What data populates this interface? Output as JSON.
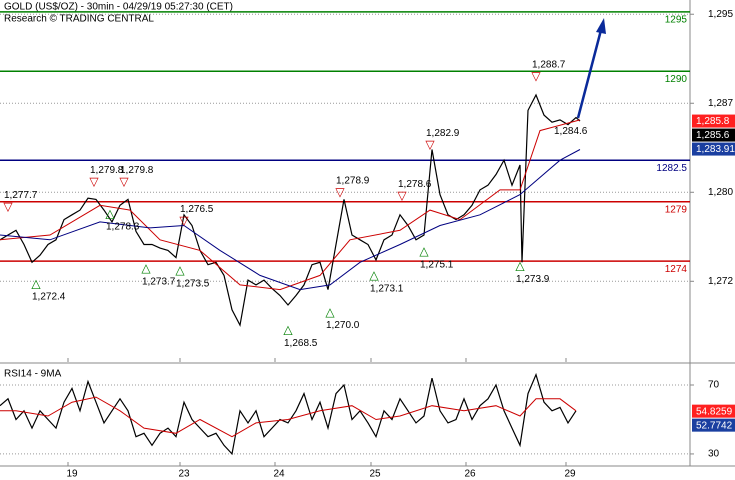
{
  "header": {
    "title": "GOLD (US$/OZ) - 30min - 04/29/19 05:27:30 (CET)",
    "subtitle": "Research © TRADING CENTRAL"
  },
  "chart_data": [
    {
      "type": "line",
      "xlim": [
        0,
        345
      ],
      "ylim": [
        1265.5,
        1296.0
      ],
      "yticks": [
        {
          "value": 1294.8,
          "label": "1,295"
        },
        {
          "value": 1287.3,
          "label": "1,287"
        },
        {
          "value": 1279.8,
          "label": "1,280"
        },
        {
          "value": 1272.3,
          "label": "1,272"
        }
      ],
      "grid": true,
      "series": [
        {
          "color": "#000000",
          "x": [
            0,
            4,
            8,
            12,
            16,
            20,
            24,
            28,
            32,
            36,
            40,
            44,
            48,
            52,
            56,
            60,
            64,
            68,
            72,
            76,
            80,
            84,
            88,
            92,
            96,
            100,
            104,
            108,
            112,
            116,
            120,
            124,
            128,
            132,
            136,
            140,
            144,
            148,
            152,
            156,
            160,
            164,
            168,
            172,
            176,
            180,
            184,
            188,
            192,
            196,
            200,
            204,
            208,
            212,
            216,
            220,
            224,
            228,
            232,
            236,
            240,
            244,
            248,
            252,
            256,
            260,
            261,
            264,
            268,
            272,
            276,
            280,
            284,
            288,
            290
          ],
          "values": [
            1275.8,
            1276.2,
            1276.6,
            1275.4,
            1273.9,
            1274.5,
            1275.4,
            1275.8,
            1277.5,
            1277.9,
            1278.3,
            1279.3,
            1279.2,
            1278.3,
            1277.3,
            1278.7,
            1279.2,
            1276.5,
            1275.4,
            1275.4,
            1275.1,
            1274.9,
            1274.3,
            1277.9,
            1277.0,
            1274.9,
            1273.7,
            1273.9,
            1272.8,
            1269.9,
            1268.6,
            1272.4,
            1272.0,
            1272.4,
            1271.7,
            1271.1,
            1270.3,
            1271.1,
            1272.0,
            1273.7,
            1273.9,
            1271.6,
            1275.4,
            1279.2,
            1276.2,
            1275.8,
            1275.4,
            1274.1,
            1275.8,
            1276.2,
            1277.9,
            1277.0,
            1275.8,
            1276.2,
            1283.4,
            1279.6,
            1277.9,
            1277.5,
            1277.9,
            1278.7,
            1280.0,
            1280.4,
            1281.3,
            1282.5,
            1280.4,
            1282.1,
            1273.9,
            1286.7,
            1288.0,
            1286.3,
            1285.7,
            1285.9,
            1285.5,
            1286.1,
            1285.8
          ]
        },
        {
          "color": "#cc0000",
          "x": [
            0,
            25,
            50,
            65,
            80,
            100,
            120,
            140,
            160,
            175,
            200,
            215,
            230,
            250,
            260,
            270,
            290
          ],
          "values": [
            1275.8,
            1276.2,
            1278.7,
            1278.3,
            1275.8,
            1274.9,
            1272.0,
            1271.6,
            1272.8,
            1275.8,
            1276.6,
            1278.3,
            1277.5,
            1280.0,
            1280.0,
            1285.0,
            1285.9
          ]
        },
        {
          "color": "#000080",
          "x": [
            0,
            25,
            50,
            75,
            92,
            110,
            130,
            150,
            165,
            180,
            200,
            220,
            240,
            260,
            280,
            290
          ],
          "values": [
            1276.2,
            1275.8,
            1277.3,
            1276.8,
            1277.0,
            1274.9,
            1272.8,
            1271.6,
            1272.0,
            1273.9,
            1275.4,
            1277.0,
            1277.9,
            1279.6,
            1282.5,
            1283.4
          ]
        }
      ],
      "levels": [
        {
          "value": 1295,
          "label": "1295",
          "color": "#008000"
        },
        {
          "value": 1290,
          "label": "1290",
          "color": "#008000"
        },
        {
          "value": 1282.5,
          "label": "1282.5",
          "color": "#000080"
        },
        {
          "value": 1279,
          "label": "1279",
          "color": "#cc0000"
        },
        {
          "value": 1274,
          "label": "1274",
          "color": "#cc0000"
        }
      ],
      "annotations": [
        {
          "x": 4,
          "value": 1277.7,
          "label": "1,277.7",
          "marker": "▽",
          "color": "#cc0000"
        },
        {
          "x": 18,
          "value": 1272.4,
          "label": "1,272.4",
          "marker": "△",
          "color": "#008000"
        },
        {
          "x": 47,
          "value": 1279.8,
          "label": "1,279.8",
          "marker": "▽",
          "color": "#cc0000"
        },
        {
          "x": 62,
          "value": 1279.8,
          "label": "1,279.8",
          "marker": "▽",
          "color": "#cc0000"
        },
        {
          "x": 55,
          "value": 1278.3,
          "label": "1,278.3",
          "marker": "△",
          "color": "#008000"
        },
        {
          "x": 73,
          "value": 1273.7,
          "label": "1,273.7",
          "marker": "△",
          "color": "#008000"
        },
        {
          "x": 92,
          "value": 1276.5,
          "label": "1,276.5",
          "marker": "▽",
          "color": "#cc0000"
        },
        {
          "x": 90,
          "value": 1273.5,
          "label": "1,273.5",
          "marker": "△",
          "color": "#008000"
        },
        {
          "x": 144,
          "value": 1268.5,
          "label": "1,268.5",
          "marker": "△",
          "color": "#008000"
        },
        {
          "x": 165,
          "value": 1270.0,
          "label": "1,270.0",
          "marker": "△",
          "color": "#008000"
        },
        {
          "x": 170,
          "value": 1278.9,
          "label": "1,278.9",
          "marker": "▽",
          "color": "#cc0000"
        },
        {
          "x": 187,
          "value": 1273.1,
          "label": "1,273.1",
          "marker": "△",
          "color": "#008000"
        },
        {
          "x": 201,
          "value": 1278.6,
          "label": "1,278.6",
          "marker": "▽",
          "color": "#cc0000"
        },
        {
          "x": 215,
          "value": 1282.9,
          "label": "1,282.9",
          "marker": "▽",
          "color": "#cc0000"
        },
        {
          "x": 212,
          "value": 1275.1,
          "label": "1,275.1",
          "marker": "△",
          "color": "#008000"
        },
        {
          "x": 260,
          "value": 1273.9,
          "label": "1,273.9",
          "marker": "△",
          "color": "#008000"
        },
        {
          "x": 268,
          "value": 1288.7,
          "label": "1,288.7",
          "marker": "▽",
          "color": "#cc0000"
        },
        {
          "x": 282,
          "value": 1284.6,
          "label": "1,284.6",
          "color": "#000000"
        }
      ],
      "price_labels": [
        {
          "value": 1285.8,
          "label": "1,285.8",
          "color": "#ff2020"
        },
        {
          "value": 1285.6,
          "label": "1,285.6",
          "color": "#000000"
        },
        {
          "value": 1283.91,
          "label": "1,283.91",
          "color": "#1a3fa0"
        }
      ]
    },
    {
      "type": "line",
      "title": "RSI14 - 9MA",
      "xlim": [
        0,
        345
      ],
      "ylim": [
        23,
        81.6
      ],
      "yticks": [
        30,
        70
      ],
      "grid": true,
      "xticks": [
        {
          "value": 34,
          "label": "19"
        },
        {
          "value": 90,
          "label": "23"
        },
        {
          "value": 137.5,
          "label": "24"
        },
        {
          "value": 185.5,
          "label": "25"
        },
        {
          "value": 233,
          "label": "26"
        },
        {
          "value": 283,
          "label": "29"
        }
      ],
      "series": [
        {
          "color": "#000000",
          "x": [
            0,
            4,
            8,
            12,
            16,
            20,
            24,
            28,
            32,
            36,
            40,
            44,
            48,
            52,
            56,
            60,
            64,
            68,
            72,
            76,
            80,
            84,
            88,
            92,
            96,
            100,
            104,
            108,
            112,
            116,
            120,
            124,
            128,
            132,
            136,
            140,
            144,
            148,
            152,
            156,
            160,
            164,
            168,
            172,
            176,
            180,
            184,
            188,
            192,
            196,
            200,
            204,
            208,
            212,
            216,
            220,
            224,
            228,
            232,
            236,
            240,
            244,
            248,
            252,
            256,
            260,
            264,
            268,
            272,
            276,
            280,
            284,
            288
          ],
          "values": [
            58,
            62,
            50,
            55,
            45,
            55,
            50,
            45,
            60,
            68,
            55,
            72,
            60,
            48,
            55,
            62,
            55,
            40,
            42,
            35,
            42,
            45,
            40,
            60,
            50,
            45,
            40,
            42,
            35,
            30,
            55,
            48,
            55,
            40,
            45,
            50,
            48,
            55,
            65,
            50,
            60,
            45,
            65,
            70,
            50,
            55,
            48,
            40,
            55,
            50,
            62,
            55,
            48,
            52,
            74,
            55,
            48,
            50,
            62,
            50,
            58,
            62,
            70,
            55,
            45,
            35,
            65,
            76,
            60,
            55,
            57,
            48,
            55
          ]
        },
        {
          "color": "#cc0000",
          "x": [
            0,
            8,
            24,
            36,
            48,
            60,
            72,
            88,
            100,
            116,
            128,
            144,
            160,
            176,
            188,
            200,
            216,
            232,
            248,
            260,
            268,
            280,
            288
          ],
          "values": [
            55,
            55,
            52,
            60,
            63,
            55,
            45,
            42,
            50,
            40,
            48,
            50,
            55,
            58,
            50,
            52,
            58,
            55,
            58,
            52,
            62,
            62,
            55
          ]
        }
      ],
      "value_labels": [
        {
          "value": 54.8259,
          "label": "54.8259",
          "color": "#ff2020"
        },
        {
          "value": 52.7742,
          "label": "52.7742",
          "color": "#1a3fa0"
        }
      ]
    }
  ]
}
